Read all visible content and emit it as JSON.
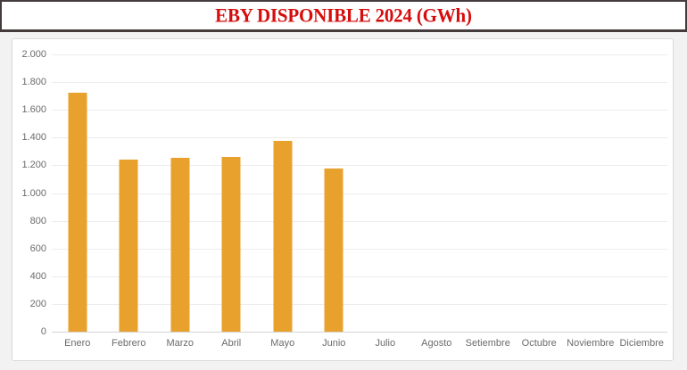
{
  "title": "EBY DISPONIBLE 2024 (GWh)",
  "colors": {
    "title_red": "#d60d0d",
    "bar_orange": "#e8a12c",
    "banner_border": "#443c3c",
    "panel_border": "#d9d9d9",
    "axis_text": "#6b6b6b",
    "gridline": "#ececec"
  },
  "chart_data": {
    "type": "bar",
    "title": "EBY DISPONIBLE 2024 (GWh)",
    "categories": [
      "Enero",
      "Febrero",
      "Marzo",
      "Abril",
      "Mayo",
      "Junio",
      "Julio",
      "Agosto",
      "Setiembre",
      "Octubre",
      "Noviembre",
      "Diciembre"
    ],
    "values": [
      1725,
      1240,
      1255,
      1260,
      1375,
      1180,
      null,
      null,
      null,
      null,
      null,
      null
    ],
    "xlabel": "",
    "ylabel": "",
    "ylim": [
      0,
      2000
    ],
    "ytick_step": 200,
    "ytick_labels": [
      "0",
      "200",
      "400",
      "600",
      "800",
      "1.000",
      "1.200",
      "1.400",
      "1.600",
      "1.800",
      "2.000"
    ],
    "grid": true,
    "legend": false,
    "bar_color": "#e8a12c"
  }
}
